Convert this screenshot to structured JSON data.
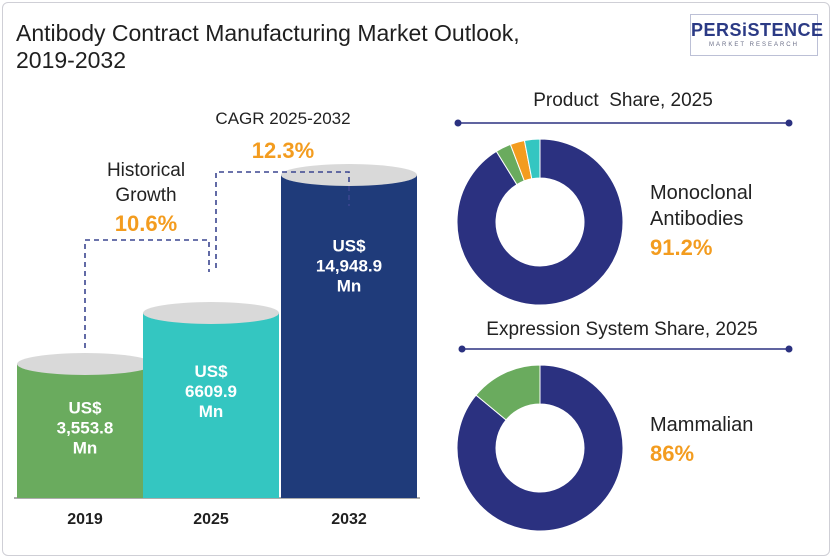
{
  "header": {
    "title_line1": "Antibody Contract Manufacturing Market Outlook,",
    "title_line2": "2019-2032",
    "logo_text": "PERSiSTENCE",
    "logo_tagline": "MARKET RESEARCH"
  },
  "annotations": {
    "historical_label_line1": "Historical",
    "historical_label_line2": "Growth",
    "historical_value": "10.6%",
    "cagr_label": "CAGR 2025-2032",
    "cagr_value": "12.3%"
  },
  "colors": {
    "bar_2019": "#6aab5e",
    "bar_2025": "#34c6c1",
    "bar_2032": "#1f3b7a",
    "accent_orange": "#f39c1f",
    "donut_main": "#2b3180",
    "donut_green": "#6aab5e",
    "donut_orange": "#f39c1f",
    "donut_teal": "#34c6c1"
  },
  "chart_data": [
    {
      "type": "bar",
      "categories": [
        "2019",
        "2025",
        "2032"
      ],
      "values": [
        3553.8,
        6609.9,
        14948.9
      ],
      "value_labels": [
        [
          "US$",
          "3,553.8",
          "Mn"
        ],
        [
          "US$",
          "6609.9",
          "Mn"
        ],
        [
          "US$",
          "14,948.9",
          "Mn"
        ]
      ]
    },
    {
      "type": "pie",
      "title": "Product  Share, 2025",
      "slices": [
        {
          "name": "Monoclonal Antibodies",
          "value": 91.2
        },
        {
          "name": "",
          "value": 3.0
        },
        {
          "name": "",
          "value": 2.8
        },
        {
          "name": "",
          "value": 3.0
        }
      ],
      "callout_line1": "Monoclonal",
      "callout_line2": "Antibodies",
      "callout_value": "91.2%"
    },
    {
      "type": "pie",
      "title": "Expression System Share, 2025",
      "slices": [
        {
          "name": "Mammalian",
          "value": 86
        },
        {
          "name": "",
          "value": 14
        }
      ],
      "callout_line1": "Mammalian",
      "callout_value": "86%"
    }
  ]
}
